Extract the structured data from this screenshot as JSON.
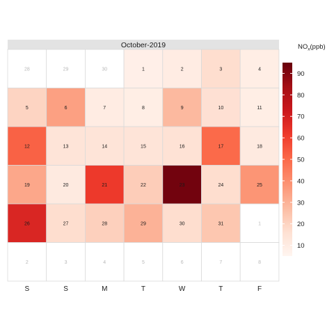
{
  "chart_data": {
    "type": "heatmap",
    "title": "October-2019",
    "legend": {
      "title": "NO",
      "title_sub": "x",
      "title_unit": "(ppb)",
      "placement": "right",
      "min": 5,
      "max": 95,
      "ticks": [
        10,
        20,
        30,
        40,
        50,
        60,
        70,
        80,
        90
      ]
    },
    "weekdays": [
      "S",
      "S",
      "M",
      "T",
      "W",
      "T",
      "F"
    ],
    "colors": {
      "low": "#fff5f0",
      "high": "#67000d",
      "outside_text": "#b8b8b8",
      "cell_border": "#d9d9d9",
      "strip_bg": "#e3e3e3"
    },
    "weeks": [
      [
        {
          "day": "28",
          "in_month": false
        },
        {
          "day": "29",
          "in_month": false
        },
        {
          "day": "30",
          "in_month": false
        },
        {
          "day": "1",
          "in_month": true,
          "value": 8
        },
        {
          "day": "2",
          "in_month": true,
          "value": 10
        },
        {
          "day": "3",
          "in_month": true,
          "value": 17
        },
        {
          "day": "4",
          "in_month": true,
          "value": 9
        }
      ],
      [
        {
          "day": "5",
          "in_month": true,
          "value": 20
        },
        {
          "day": "6",
          "in_month": true,
          "value": 35
        },
        {
          "day": "7",
          "in_month": true,
          "value": 10
        },
        {
          "day": "8",
          "in_month": true,
          "value": 9
        },
        {
          "day": "9",
          "in_month": true,
          "value": 28
        },
        {
          "day": "10",
          "in_month": true,
          "value": 16
        },
        {
          "day": "11",
          "in_month": true,
          "value": 9
        }
      ],
      [
        {
          "day": "12",
          "in_month": true,
          "value": 52
        },
        {
          "day": "13",
          "in_month": true,
          "value": 14
        },
        {
          "day": "14",
          "in_month": true,
          "value": 14
        },
        {
          "day": "15",
          "in_month": true,
          "value": 14
        },
        {
          "day": "16",
          "in_month": true,
          "value": 15
        },
        {
          "day": "17",
          "in_month": true,
          "value": 50
        },
        {
          "day": "18",
          "in_month": true,
          "value": 11
        }
      ],
      [
        {
          "day": "19",
          "in_month": true,
          "value": 33
        },
        {
          "day": "20",
          "in_month": true,
          "value": 11
        },
        {
          "day": "21",
          "in_month": true,
          "value": 62
        },
        {
          "day": "22",
          "in_month": true,
          "value": 22
        },
        {
          "day": "23",
          "in_month": true,
          "value": 93
        },
        {
          "day": "24",
          "in_month": true,
          "value": 17
        },
        {
          "day": "25",
          "in_month": true,
          "value": 38
        }
      ],
      [
        {
          "day": "26",
          "in_month": true,
          "value": 68
        },
        {
          "day": "27",
          "in_month": true,
          "value": 17
        },
        {
          "day": "28",
          "in_month": true,
          "value": 21
        },
        {
          "day": "29",
          "in_month": true,
          "value": 30
        },
        {
          "day": "30",
          "in_month": true,
          "value": 17
        },
        {
          "day": "31",
          "in_month": true,
          "value": 24
        },
        {
          "day": "1",
          "in_month": false
        }
      ],
      [
        {
          "day": "2",
          "in_month": false
        },
        {
          "day": "3",
          "in_month": false
        },
        {
          "day": "4",
          "in_month": false
        },
        {
          "day": "5",
          "in_month": false
        },
        {
          "day": "6",
          "in_month": false
        },
        {
          "day": "7",
          "in_month": false
        },
        {
          "day": "8",
          "in_month": false
        }
      ]
    ]
  }
}
